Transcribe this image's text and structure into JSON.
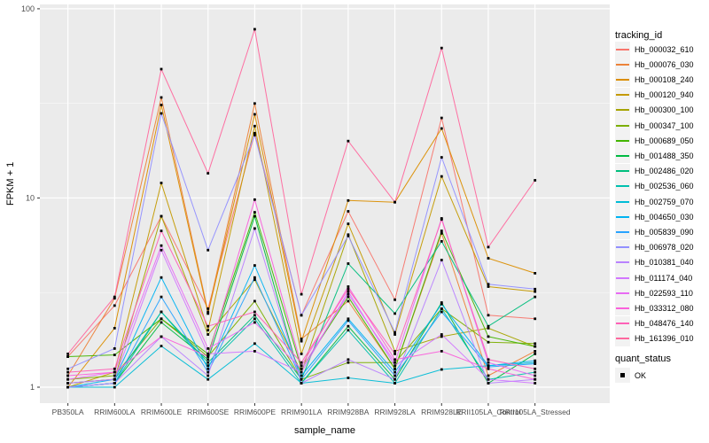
{
  "chart_data": {
    "type": "line",
    "title": "",
    "xlabel": "sample_name",
    "ylabel": "FPKM + 1",
    "y_scale": "log10",
    "y_tick_labels": [
      "1",
      "10",
      "100"
    ],
    "y_tick_values": [
      1,
      10,
      100
    ],
    "y_minor_log_values": [
      0.5,
      1.5
    ],
    "ylim_log": [
      -0.0843,
      2.023
    ],
    "grid": true,
    "legend_position": "right",
    "legend_title": "tracking_id",
    "point_marker": "black-square",
    "categories": [
      "PB350LA",
      "RRIM600LA",
      "RRIM600LE",
      "RRIM600SE",
      "RRIM600PE",
      "RRIM901LA",
      "RRIM928BA",
      "RRIM928LA",
      "RRIM928LE",
      "RRII105LA_Control",
      "RRII105LA_Stressed"
    ],
    "series": [
      {
        "name": "Hb_000032_610",
        "color": "#F8766D",
        "values": [
          1.45,
          2.7,
          8.0,
          2.6,
          22.0,
          2.4,
          8.5,
          2.9,
          26.5,
          2.4,
          2.3
        ]
      },
      {
        "name": "Hb_000076_030",
        "color": "#EC8239",
        "values": [
          1.15,
          2.95,
          34.0,
          2.5,
          31.6,
          1.8,
          2.85,
          1.25,
          6.5,
          1.15,
          1.55
        ]
      },
      {
        "name": "Hb_000108_240",
        "color": "#DB8E00",
        "values": [
          1.0,
          2.05,
          31.0,
          2.45,
          27.7,
          1.75,
          9.7,
          9.5,
          23.3,
          4.8,
          4.0
        ]
      },
      {
        "name": "Hb_000120_940",
        "color": "#C49A00",
        "values": [
          1.0,
          1.2,
          12.0,
          2.0,
          24.0,
          1.5,
          7.3,
          1.9,
          13.0,
          3.4,
          3.2
        ]
      },
      {
        "name": "Hb_000300_100",
        "color": "#A6A400",
        "values": [
          1.05,
          1.1,
          8.0,
          1.9,
          3.7,
          1.2,
          6.4,
          1.55,
          1.85,
          2.05,
          1.64
        ]
      },
      {
        "name": "Hb_000347_100",
        "color": "#7CAE00",
        "values": [
          1.1,
          1.15,
          2.3,
          1.45,
          2.85,
          1.1,
          1.35,
          1.35,
          2.6,
          1.73,
          1.7
        ]
      },
      {
        "name": "Hb_000689_050",
        "color": "#43B500",
        "values": [
          1.45,
          1.48,
          2.3,
          1.5,
          8.4,
          1.25,
          3.0,
          1.25,
          6.7,
          1.85,
          1.64
        ]
      },
      {
        "name": "Hb_001488_350",
        "color": "#00BA42",
        "values": [
          1.0,
          1.05,
          2.2,
          1.4,
          8.0,
          1.05,
          2.1,
          1.1,
          2.8,
          1.05,
          1.5
        ]
      },
      {
        "name": "Hb_002486_020",
        "color": "#00BE7D",
        "values": [
          1.05,
          1.1,
          2.5,
          1.35,
          2.4,
          1.1,
          4.5,
          2.45,
          5.9,
          2.1,
          3.0
        ]
      },
      {
        "name": "Hb_002536_060",
        "color": "#00C0AF",
        "values": [
          1.0,
          1.05,
          2.5,
          1.3,
          2.3,
          1.05,
          2.0,
          1.05,
          2.6,
          1.1,
          1.2
        ]
      },
      {
        "name": "Hb_002759_070",
        "color": "#00BCD6",
        "values": [
          1.0,
          1.0,
          1.65,
          1.1,
          1.7,
          1.05,
          1.12,
          1.05,
          1.24,
          1.3,
          1.35
        ]
      },
      {
        "name": "Hb_004650_030",
        "color": "#00B3F2",
        "values": [
          1.0,
          1.1,
          3.8,
          1.25,
          4.4,
          1.15,
          2.3,
          1.2,
          2.75,
          1.3,
          1.38
        ]
      },
      {
        "name": "Hb_005839_090",
        "color": "#29A3FF",
        "values": [
          1.0,
          1.05,
          3.0,
          1.2,
          3.8,
          1.1,
          2.25,
          1.15,
          2.5,
          1.28,
          1.33
        ]
      },
      {
        "name": "Hb_006978_020",
        "color": "#9290FF",
        "values": [
          1.25,
          1.6,
          28.0,
          5.3,
          21.5,
          2.4,
          6.3,
          1.95,
          16.4,
          3.5,
          3.3
        ]
      },
      {
        "name": "Hb_010381_040",
        "color": "#B983FF",
        "values": [
          1.0,
          1.05,
          1.85,
          1.15,
          6.9,
          1.05,
          1.4,
          1.1,
          4.7,
          1.05,
          1.1
        ]
      },
      {
        "name": "Hb_011174_040",
        "color": "#D277FF",
        "values": [
          1.05,
          1.1,
          5.3,
          1.5,
          1.55,
          1.2,
          3.2,
          1.3,
          1.9,
          1.1,
          1.05
        ]
      },
      {
        "name": "Hb_022593_110",
        "color": "#E86BF3",
        "values": [
          1.1,
          1.2,
          5.6,
          1.6,
          2.2,
          1.25,
          3.1,
          1.35,
          7.8,
          1.35,
          1.15
        ]
      },
      {
        "name": "Hb_033312_080",
        "color": "#FA61DB",
        "values": [
          1.15,
          1.2,
          1.85,
          1.45,
          9.8,
          1.3,
          3.4,
          1.4,
          1.55,
          1.25,
          1.1
        ]
      },
      {
        "name": "Hb_048476_140",
        "color": "#FF61B7",
        "values": [
          1.2,
          1.25,
          6.7,
          2.1,
          2.5,
          1.35,
          3.3,
          1.5,
          7.7,
          1.4,
          1.25
        ]
      },
      {
        "name": "Hb_161396_010",
        "color": "#FF689E",
        "values": [
          1.5,
          3.0,
          48.0,
          13.5,
          78.0,
          3.1,
          20.0,
          9.5,
          62.0,
          5.5,
          12.4
        ]
      }
    ],
    "quant_legend": {
      "title": "quant_status",
      "items": [
        {
          "label": "OK",
          "marker": "black-square"
        }
      ]
    }
  },
  "colors": {
    "panel_bg": "#EBEBEB",
    "grid_major": "#FFFFFF",
    "grid_minor": "#F7F7F7",
    "tick_label": "#4D4D4D",
    "axis_title": "#000000",
    "point": "#000000",
    "legend_key_bg": "#F2F2F2",
    "page_bg": "#FFFFFF"
  }
}
